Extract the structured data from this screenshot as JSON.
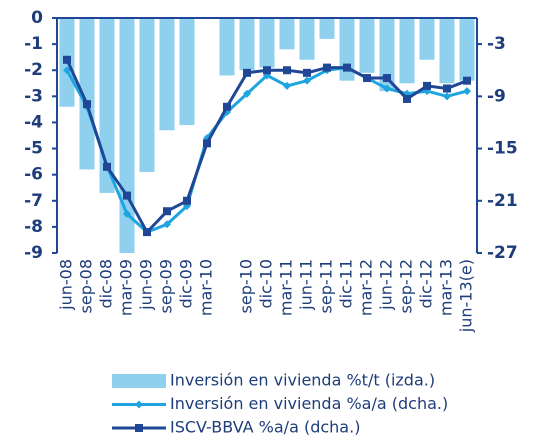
{
  "chart_data": {
    "type": "combo",
    "categories": [
      "jun-08",
      "sep-08",
      "dic-08",
      "mar-09",
      "jun-09",
      "sep-09",
      "dic-09",
      "mar-10",
      null,
      "sep-10",
      "dic-10",
      "mar-11",
      "jun-11",
      "sep-11",
      "dic-11",
      "mar-12",
      "jun-12",
      "sep-12",
      "dic-12",
      "mar-13",
      "jun-13(e)"
    ],
    "ylim": [
      -9,
      0
    ],
    "yticks": [
      0,
      -1,
      -2,
      -3,
      -4,
      -5,
      -6,
      -7,
      -8,
      -9
    ],
    "y2lim": [
      -27,
      0
    ],
    "y2ticks": [
      -3,
      -9,
      -15,
      -21,
      -27
    ],
    "series": [
      {
        "name": "Inversión en vivienda %t/t (izda.)",
        "type": "bar",
        "axis": "y",
        "color": "#8fd0ef",
        "values": [
          -3.4,
          -5.8,
          -6.7,
          -9.0,
          -5.9,
          -4.3,
          -4.1,
          null,
          -2.2,
          -2.0,
          -1.9,
          -1.2,
          -1.6,
          -0.8,
          -2.4,
          -2.1,
          -2.8,
          -2.5,
          -1.6,
          -2.5,
          -2.4
        ]
      },
      {
        "name": "Inversión en vivienda %a/a (dcha.)",
        "type": "line",
        "axis": "y2",
        "color": "#1ea5e0",
        "values": [
          -6,
          -10.2,
          -17,
          -22.5,
          -24.6,
          -23.7,
          -21.6,
          -13.8,
          -10.8,
          -8.7,
          -6.6,
          -7.8,
          -7.2,
          -6.0,
          -5.7,
          -6.9,
          -8.1,
          -8.7,
          -8.4,
          -9.0,
          -8.4
        ]
      },
      {
        "name": "ISCV-BBVA %a/a (dcha.)",
        "type": "line",
        "axis": "y2",
        "color": "#1f4796",
        "values": [
          -4.8,
          -9.9,
          -17.1,
          -20.4,
          -24.6,
          -22.2,
          -21,
          -14.4,
          -10.2,
          -6.3,
          -6,
          -6,
          -6.3,
          -5.7,
          -5.7,
          -6.9,
          -6.9,
          -9.3,
          -7.8,
          -8.1,
          -7.2
        ]
      }
    ]
  }
}
